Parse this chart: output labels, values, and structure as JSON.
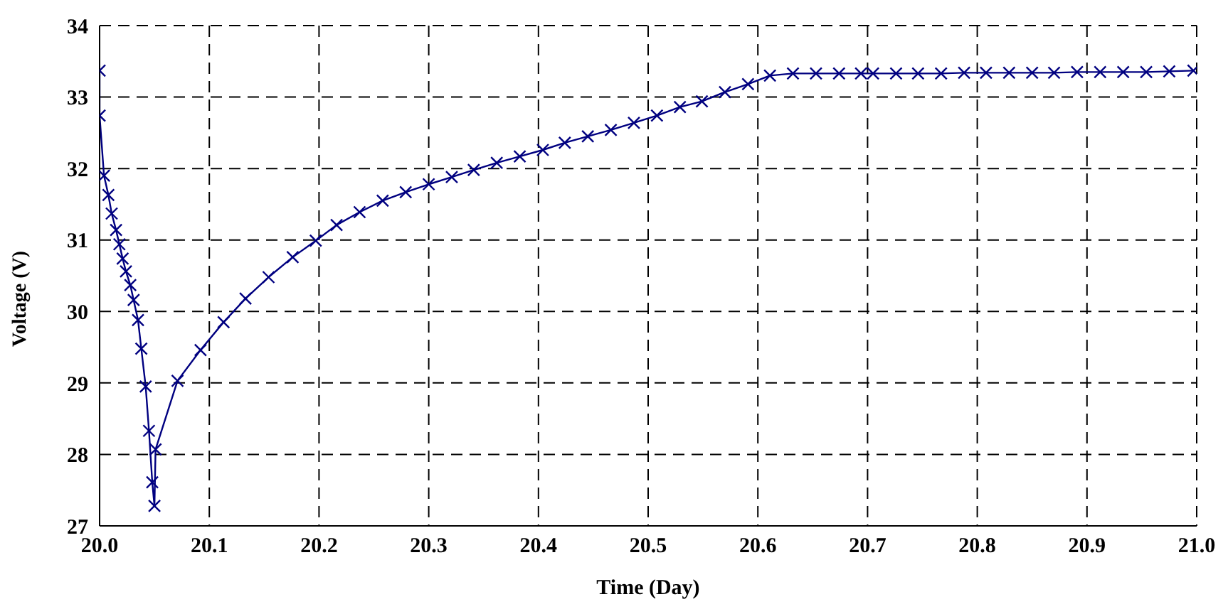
{
  "chart_data": {
    "type": "line",
    "xlabel": "Time (Day)",
    "ylabel": "Voltage  (V)",
    "x": [
      20.0,
      20.0,
      20.004,
      20.008,
      20.011,
      20.015,
      20.018,
      20.021,
      20.024,
      20.028,
      20.031,
      20.035,
      20.038,
      20.042,
      20.045,
      20.048,
      20.05,
      20.051,
      20.071,
      20.092,
      20.113,
      20.133,
      20.154,
      20.176,
      20.197,
      20.216,
      20.237,
      20.258,
      20.279,
      20.3,
      20.321,
      20.341,
      20.362,
      20.383,
      20.404,
      20.424,
      20.445,
      20.466,
      20.487,
      20.508,
      20.529,
      20.549,
      20.57,
      20.591,
      20.611,
      20.632,
      20.653,
      20.674,
      20.694,
      20.705,
      20.726,
      20.746,
      20.767,
      20.788,
      20.808,
      20.829,
      20.85,
      20.87,
      20.891,
      20.912,
      20.933,
      20.954,
      20.975,
      20.997
    ],
    "series": [
      {
        "color": "#000080",
        "values": [
          33.37,
          32.74,
          31.9,
          31.63,
          31.37,
          31.14,
          30.94,
          30.74,
          30.56,
          30.37,
          30.16,
          29.88,
          29.48,
          28.95,
          28.33,
          27.61,
          27.28,
          28.07,
          29.03,
          29.46,
          29.85,
          30.18,
          30.48,
          30.76,
          30.99,
          31.21,
          31.39,
          31.55,
          31.67,
          31.78,
          31.88,
          31.98,
          32.08,
          32.17,
          32.26,
          32.36,
          32.45,
          32.54,
          32.64,
          32.74,
          32.86,
          32.94,
          33.07,
          33.18,
          33.3,
          33.33,
          33.33,
          33.33,
          33.33,
          33.33,
          33.33,
          33.33,
          33.33,
          33.34,
          33.34,
          33.34,
          33.34,
          33.34,
          33.35,
          33.35,
          33.35,
          33.35,
          33.36,
          33.37
        ]
      }
    ],
    "xlim": [
      20,
      21
    ],
    "xticks": [
      {
        "value": 20,
        "label": "20.0"
      },
      {
        "value": 20.1,
        "label": "20.1"
      },
      {
        "value": 20.2,
        "label": "20.2"
      },
      {
        "value": 20.3,
        "label": "20.3"
      },
      {
        "value": 20.4,
        "label": "20.4"
      },
      {
        "value": 20.5,
        "label": "20.5"
      },
      {
        "value": 20.6,
        "label": "20.6"
      },
      {
        "value": 20.7,
        "label": "20.7"
      },
      {
        "value": 20.8,
        "label": "20.8"
      },
      {
        "value": 20.9,
        "label": "20.9"
      },
      {
        "value": 21,
        "label": "21.0"
      }
    ],
    "ylim": [
      27,
      34
    ],
    "yticks": [
      27,
      28,
      29,
      30,
      31,
      32,
      33,
      34
    ],
    "grid": true,
    "marker": "cross",
    "line_style": "solid",
    "legend": false
  }
}
